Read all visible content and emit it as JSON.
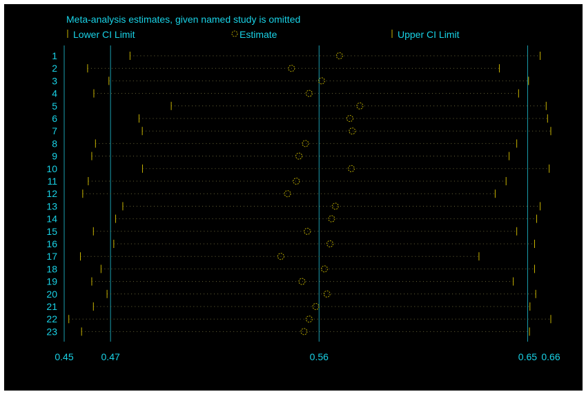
{
  "colors": {
    "background": "#000000",
    "text": "#19d2e6",
    "axis_lines": "#1a9fb0",
    "ci_markers": "#c8b400",
    "dotted_lines": "#6e6a3a",
    "estimate_marker": "#b7a700"
  },
  "chart_data": {
    "type": "scatter",
    "title": "Meta-analysis estimates, given named study is omitted",
    "legend": {
      "position": "top",
      "entries": [
        {
          "label": "Lower CI Limit",
          "marker": "vertical-bar"
        },
        {
          "label": "Estimate",
          "marker": "open-circle"
        },
        {
          "label": "Upper CI Limit",
          "marker": "vertical-bar"
        }
      ]
    },
    "xlim": [
      0.45,
      0.66
    ],
    "x_tick_labels": [
      "0.45",
      "0.47",
      "0.56",
      "0.65",
      "0.66"
    ],
    "x_ticks": [
      0.45,
      0.47,
      0.56,
      0.65,
      0.66
    ],
    "reference_lines": [
      0.47,
      0.56,
      0.65
    ],
    "studies": [
      {
        "label": "1",
        "lower": 0.4784,
        "estimate": 0.5688,
        "upper": 0.6554
      },
      {
        "label": "2",
        "lower": 0.4601,
        "estimate": 0.5481,
        "upper": 0.6378
      },
      {
        "label": "3",
        "lower": 0.4693,
        "estimate": 0.5611,
        "upper": 0.6504
      },
      {
        "label": "4",
        "lower": 0.4628,
        "estimate": 0.5557,
        "upper": 0.6461
      },
      {
        "label": "5",
        "lower": 0.4962,
        "estimate": 0.5776,
        "upper": 0.658
      },
      {
        "label": "6",
        "lower": 0.4823,
        "estimate": 0.5733,
        "upper": 0.6586
      },
      {
        "label": "7",
        "lower": 0.4837,
        "estimate": 0.5743,
        "upper": 0.66
      },
      {
        "label": "8",
        "lower": 0.4635,
        "estimate": 0.5541,
        "upper": 0.6453
      },
      {
        "label": "9",
        "lower": 0.4619,
        "estimate": 0.5513,
        "upper": 0.642
      },
      {
        "label": "10",
        "lower": 0.4838,
        "estimate": 0.5739,
        "upper": 0.6593
      },
      {
        "label": "11",
        "lower": 0.4604,
        "estimate": 0.5502,
        "upper": 0.6407
      },
      {
        "label": "12",
        "lower": 0.458,
        "estimate": 0.5464,
        "upper": 0.636
      },
      {
        "label": "13",
        "lower": 0.4753,
        "estimate": 0.567,
        "upper": 0.6554
      },
      {
        "label": "14",
        "lower": 0.4722,
        "estimate": 0.5654,
        "upper": 0.6539
      },
      {
        "label": "15",
        "lower": 0.4626,
        "estimate": 0.5549,
        "upper": 0.6453
      },
      {
        "label": "16",
        "lower": 0.4714,
        "estimate": 0.5647,
        "upper": 0.653
      },
      {
        "label": "17",
        "lower": 0.457,
        "estimate": 0.5435,
        "upper": 0.629
      },
      {
        "label": "18",
        "lower": 0.4659,
        "estimate": 0.5623,
        "upper": 0.653
      },
      {
        "label": "19",
        "lower": 0.4619,
        "estimate": 0.5526,
        "upper": 0.6438
      },
      {
        "label": "20",
        "lower": 0.4685,
        "estimate": 0.5634,
        "upper": 0.6535
      },
      {
        "label": "21",
        "lower": 0.4626,
        "estimate": 0.5586,
        "upper": 0.651
      },
      {
        "label": "22",
        "lower": 0.452,
        "estimate": 0.5557,
        "upper": 0.66
      },
      {
        "label": "23",
        "lower": 0.4575,
        "estimate": 0.5535,
        "upper": 0.6508
      }
    ]
  }
}
